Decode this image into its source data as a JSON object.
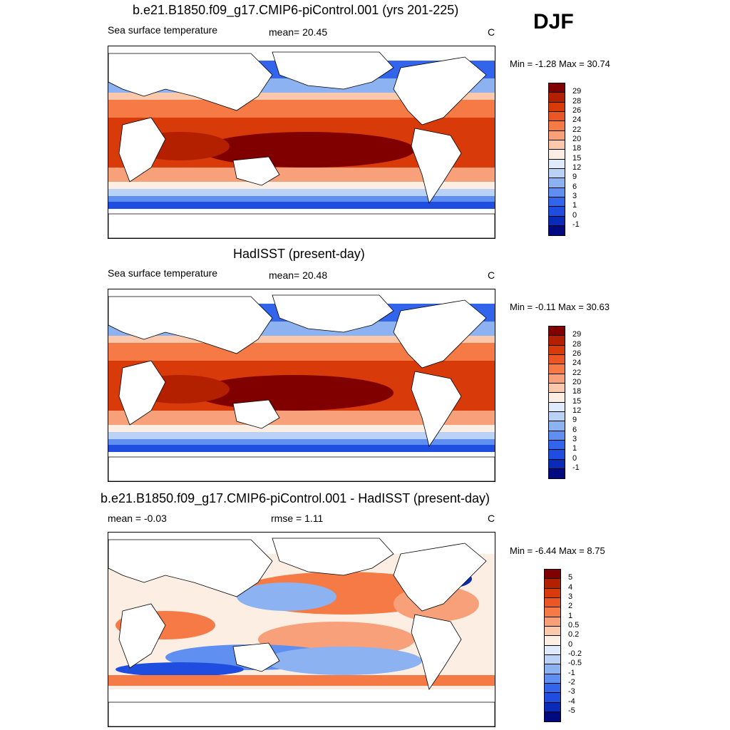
{
  "season": "DJF",
  "panels": [
    {
      "title": "b.e21.B1850.f09_g17.CMIP6-piControl.001 (yrs 201-225)",
      "left_label": "Sea surface temperature",
      "mid_label": "mean=  20.45",
      "units": "C",
      "minmax": "Min =  -1.28 Max =  30.74",
      "colorbar_labels": [
        "29",
        "28",
        "26",
        "24",
        "22",
        "20",
        "18",
        "15",
        "12",
        "9",
        "6",
        "3",
        "1",
        "0",
        "-1"
      ],
      "colors": [
        "#800000",
        "#b22000",
        "#d83a0a",
        "#ec5624",
        "#f57a46",
        "#f8a07a",
        "#fbc8ab",
        "#fdeee4",
        "#dfeafa",
        "#b9d2f6",
        "#8cb2f2",
        "#5f8ff0",
        "#3264ec",
        "#1f4de0",
        "#0a2ab8",
        "#000a80"
      ]
    },
    {
      "title": "HadISST (present-day)",
      "left_label": "Sea surface temperature",
      "mid_label": "mean=  20.48",
      "units": "C",
      "minmax": "Min =  -0.11 Max =  30.63",
      "colorbar_labels": [
        "29",
        "28",
        "26",
        "24",
        "22",
        "20",
        "18",
        "15",
        "12",
        "9",
        "6",
        "3",
        "1",
        "0",
        "-1"
      ],
      "colors": [
        "#800000",
        "#b22000",
        "#d83a0a",
        "#ec5624",
        "#f57a46",
        "#f8a07a",
        "#fbc8ab",
        "#fdeee4",
        "#dfeafa",
        "#b9d2f6",
        "#8cb2f2",
        "#5f8ff0",
        "#3264ec",
        "#1f4de0",
        "#0a2ab8",
        "#000a80"
      ]
    },
    {
      "title": "b.e21.B1850.f09_g17.CMIP6-piControl.001 - HadISST (present-day)",
      "left_label": "mean =  -0.03",
      "mid_label": "rmse =   1.11",
      "units": "C",
      "minmax": "Min =  -6.44 Max =   8.75",
      "colorbar_labels": [
        "5",
        "4",
        "3",
        "2",
        "1",
        "0.5",
        "0.2",
        "0",
        "-0.2",
        "-0.5",
        "-1",
        "-2",
        "-3",
        "-4",
        "-5"
      ],
      "colors": [
        "#800000",
        "#b22000",
        "#d83a0a",
        "#ec5624",
        "#f57a46",
        "#f8a07a",
        "#fbc8ab",
        "#fdeee4",
        "#dfeafa",
        "#b9d2f6",
        "#8cb2f2",
        "#5f8ff0",
        "#3264ec",
        "#1f4de0",
        "#0a2ab8",
        "#000a80"
      ]
    }
  ]
}
